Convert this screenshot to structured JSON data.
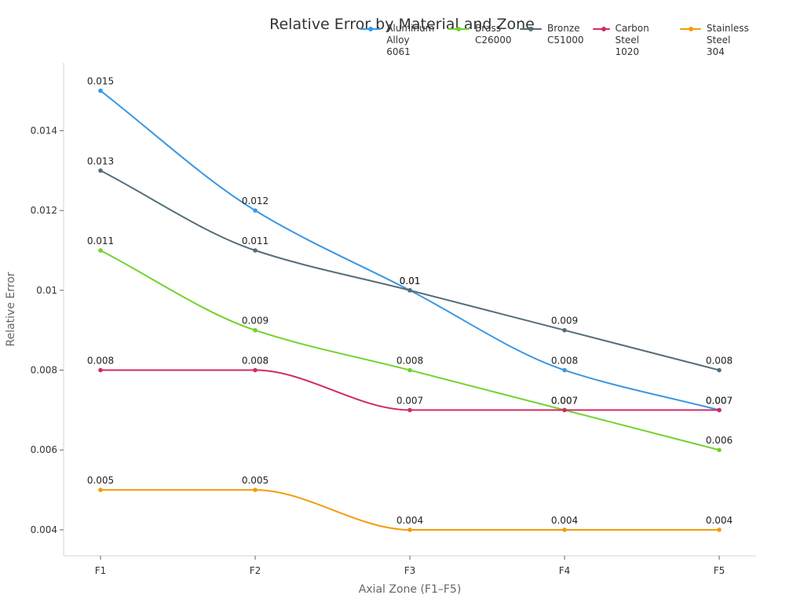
{
  "chart_data": {
    "type": "line",
    "title": "Relative Error by Material and Zone",
    "xlabel": "Axial Zone (F1–F5)",
    "ylabel": "Relative Error",
    "categories": [
      "F1",
      "F2",
      "F3",
      "F4",
      "F5"
    ],
    "ylim": [
      0.00335,
      0.0157
    ],
    "yticks": [
      0.004,
      0.006,
      0.008,
      0.01,
      0.012,
      0.014
    ],
    "ytick_labels": [
      "0.004",
      "0.006",
      "0.008",
      "0.01",
      "0.012",
      "0.014"
    ],
    "grid": false,
    "legend_position": "top-right",
    "series": [
      {
        "name": "Aluminum Alloy 6061",
        "legend_label": "Aluminum\nAlloy 6061",
        "color": "#3b97e3",
        "values": [
          0.015,
          0.012,
          0.01,
          0.008,
          0.007
        ],
        "labels": [
          "0.015",
          "0.012",
          "0.01",
          "0.008",
          "0.007"
        ]
      },
      {
        "name": "Brass C26000",
        "legend_label": "Brass\nC26000",
        "color": "#72d22d",
        "values": [
          0.011,
          0.009,
          0.008,
          0.007,
          0.006
        ],
        "labels": [
          "0.011",
          "0.009",
          "0.008",
          "0.007",
          "0.006"
        ]
      },
      {
        "name": "Bronze C51000",
        "legend_label": "Bronze\nC51000",
        "color": "#546e7a",
        "values": [
          0.013,
          0.011,
          0.01,
          0.009,
          0.008
        ],
        "labels": [
          "0.013",
          "0.011",
          "0.01",
          "0.009",
          "0.008"
        ]
      },
      {
        "name": "Carbon Steel 1020",
        "legend_label": "Carbon\nSteel 1020",
        "color": "#d12b66",
        "values": [
          0.008,
          0.008,
          0.007,
          0.007,
          0.007
        ],
        "labels": [
          "0.008",
          "0.008",
          "0.007",
          "0.007",
          "0.007"
        ]
      },
      {
        "name": "Stainless Steel 304",
        "legend_label": "Stainless\nSteel 304",
        "color": "#f59b0b",
        "values": [
          0.005,
          0.005,
          0.004,
          0.004,
          0.004
        ],
        "labels": [
          "0.005",
          "0.005",
          "0.004",
          "0.004",
          "0.004"
        ]
      }
    ]
  }
}
